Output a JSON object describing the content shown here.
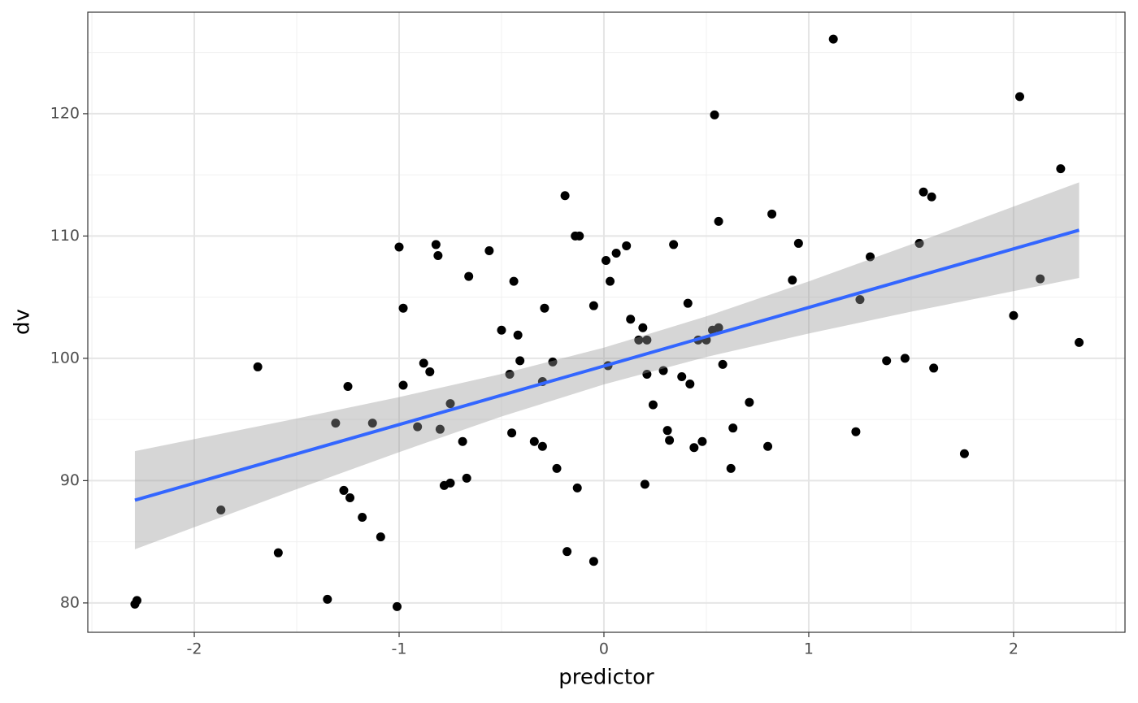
{
  "chart_data": {
    "type": "scatter",
    "x_label": "predictor",
    "y_label": "dv",
    "xlim": [
      -2.52,
      2.544
    ],
    "ylim": [
      77.6,
      128.3
    ],
    "xticks": [
      -2,
      -1,
      0,
      1,
      2
    ],
    "yticks": [
      80,
      90,
      100,
      110,
      120
    ],
    "x_minor_ticks": [
      -2.5,
      -1.5,
      -0.5,
      0.5,
      1.5,
      2.5
    ],
    "y_minor_ticks": [
      85,
      95,
      105,
      115,
      125
    ],
    "grid": true,
    "color": "#000000",
    "x": [
      -2.29,
      -2.28,
      -1.87,
      -1.69,
      -1.59,
      -1.35,
      -1.31,
      -1.27,
      -1.25,
      -1.24,
      -1.18,
      -1.13,
      -1.09,
      -1.01,
      -1.0,
      -0.98,
      -0.98,
      -0.91,
      -0.88,
      -0.85,
      -0.82,
      -0.81,
      -0.8,
      -0.78,
      -0.75,
      -0.75,
      -0.69,
      -0.67,
      -0.66,
      -0.56,
      -0.5,
      -0.46,
      -0.45,
      -0.44,
      -0.42,
      -0.41,
      -0.34,
      -0.3,
      -0.3,
      -0.29,
      -0.25,
      -0.23,
      -0.19,
      -0.18,
      -0.14,
      -0.13,
      -0.12,
      -0.05,
      -0.05,
      0.01,
      0.02,
      0.03,
      0.06,
      0.11,
      0.13,
      0.17,
      0.19,
      0.2,
      0.21,
      0.21,
      0.24,
      0.29,
      0.31,
      0.32,
      0.34,
      0.38,
      0.41,
      0.42,
      0.44,
      0.46,
      0.48,
      0.5,
      0.53,
      0.54,
      0.56,
      0.56,
      0.58,
      0.62,
      0.63,
      0.71,
      0.8,
      0.82,
      0.92,
      0.95,
      1.12,
      1.23,
      1.25,
      1.3,
      1.38,
      1.47,
      1.54,
      1.56,
      1.6,
      1.61,
      1.76,
      2.0,
      2.03,
      2.13,
      2.23,
      2.32
    ],
    "y": [
      79.9,
      80.2,
      87.6,
      99.3,
      84.1,
      80.3,
      94.7,
      89.2,
      97.7,
      88.6,
      87.0,
      94.7,
      85.4,
      79.7,
      109.1,
      104.1,
      97.8,
      94.4,
      99.6,
      98.9,
      109.3,
      108.4,
      94.2,
      89.6,
      96.3,
      89.8,
      93.2,
      90.2,
      106.7,
      108.8,
      102.3,
      98.7,
      93.9,
      106.3,
      101.9,
      99.8,
      93.2,
      92.8,
      98.1,
      104.1,
      99.7,
      91.0,
      113.3,
      84.2,
      110.0,
      89.4,
      110.0,
      104.3,
      83.4,
      108.0,
      99.4,
      106.3,
      108.6,
      109.2,
      103.2,
      101.5,
      102.5,
      89.7,
      98.7,
      101.5,
      96.2,
      99.0,
      94.1,
      93.3,
      109.3,
      98.5,
      104.5,
      97.9,
      92.7,
      101.5,
      93.2,
      101.5,
      102.3,
      119.9,
      111.2,
      102.5,
      99.5,
      91.0,
      94.3,
      96.4,
      92.8,
      111.8,
      106.4,
      109.4,
      126.1,
      94.0,
      104.8,
      108.3,
      99.8,
      100.0,
      109.4,
      113.6,
      113.2,
      99.2,
      92.2,
      103.5,
      121.4,
      106.5,
      115.5,
      101.3
    ],
    "fit": {
      "color": "#3366ff",
      "band_color": "#999999",
      "x": [
        -2.29,
        -1.5,
        -1,
        -0.5,
        0,
        0.5,
        1,
        1.5,
        2.32
      ],
      "y": [
        88.4,
        92.19,
        94.58,
        96.98,
        99.37,
        101.77,
        104.16,
        106.56,
        110.48
      ],
      "lower": [
        84.39,
        89.3,
        92.33,
        95.24,
        97.87,
        100.11,
        102.03,
        103.81,
        106.57
      ],
      "upper": [
        92.41,
        95.08,
        96.83,
        98.72,
        100.87,
        103.43,
        106.29,
        109.31,
        114.39
      ]
    }
  }
}
